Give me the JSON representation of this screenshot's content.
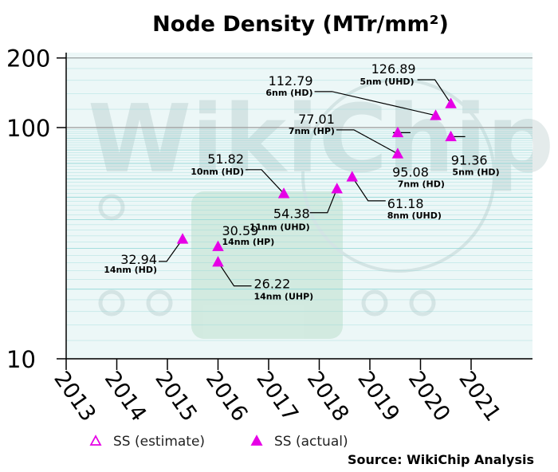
{
  "chart_data": {
    "type": "scatter",
    "title": "Node Density (MTr/mm²)",
    "yscale": "log",
    "ylim": [
      10,
      200
    ],
    "yticks": [
      {
        "value": 10,
        "label": "10"
      },
      {
        "value": 100,
        "label": "100"
      },
      {
        "value": 200,
        "label": "200"
      }
    ],
    "xlim": [
      2013,
      2022.2
    ],
    "xticks": [
      "2013",
      "2014",
      "2015",
      "2016",
      "2017",
      "2018",
      "2019",
      "2020",
      "2021"
    ],
    "grid": true,
    "legend_position": "bottom",
    "series": [
      {
        "name": "SS (estimate)",
        "marker": "hollow-triangle",
        "color": "#e600e6",
        "points": []
      },
      {
        "name": "SS (actual)",
        "marker": "filled-triangle",
        "color": "#e600e6",
        "points": [
          {
            "x": 2015.3,
            "y": 32.94,
            "value_label": "32.94",
            "node_label": "14nm (HD)"
          },
          {
            "x": 2016.0,
            "y": 30.59,
            "value_label": "30.59",
            "node_label": "14nm (HP)"
          },
          {
            "x": 2016.0,
            "y": 26.22,
            "value_label": "26.22",
            "node_label": "14nm (UHP)"
          },
          {
            "x": 2017.3,
            "y": 51.82,
            "value_label": "51.82",
            "node_label": "10nm (HD)"
          },
          {
            "x": 2018.35,
            "y": 54.38,
            "value_label": "54.38",
            "node_label": "11nm (UHD)"
          },
          {
            "x": 2018.65,
            "y": 61.18,
            "value_label": "61.18",
            "node_label": "8nm (UHD)"
          },
          {
            "x": 2019.55,
            "y": 77.01,
            "value_label": "77.01",
            "node_label": "7nm (HP)"
          },
          {
            "x": 2019.55,
            "y": 95.08,
            "value_label": "95.08",
            "node_label": "7nm (HD)"
          },
          {
            "x": 2020.3,
            "y": 112.79,
            "value_label": "112.79",
            "node_label": "6nm (HD)"
          },
          {
            "x": 2020.6,
            "y": 126.89,
            "value_label": "126.89",
            "node_label": "5nm (UHD)"
          },
          {
            "x": 2020.6,
            "y": 91.36,
            "value_label": "91.36",
            "node_label": "5nm (HD)"
          }
        ]
      }
    ],
    "source": "Source: WikiChip Analysis",
    "watermark": "WikiChip",
    "colors": {
      "marker": "#e600e6",
      "gridline": "#8fd6d6",
      "major_gridline": "#9a9a9a",
      "plot_background": "#ecf7f7"
    }
  }
}
